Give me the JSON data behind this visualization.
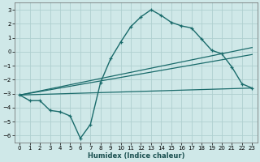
{
  "xlabel": "Humidex (Indice chaleur)",
  "ylabel": "",
  "background_color": "#cfe8e8",
  "grid_color": "#afd0d0",
  "line_color": "#1a6b6b",
  "xlim": [
    -0.5,
    23.5
  ],
  "ylim": [
    -6.5,
    3.5
  ],
  "yticks": [
    -6,
    -5,
    -4,
    -3,
    -2,
    -1,
    0,
    1,
    2,
    3
  ],
  "xticks": [
    0,
    1,
    2,
    3,
    4,
    5,
    6,
    7,
    8,
    9,
    10,
    11,
    12,
    13,
    14,
    15,
    16,
    17,
    18,
    19,
    20,
    21,
    22,
    23
  ],
  "line1_x": [
    0,
    1,
    2,
    3,
    4,
    5,
    6,
    7,
    8,
    9,
    10,
    11,
    12,
    13,
    14,
    15,
    16,
    17,
    18,
    19,
    20,
    21,
    22,
    23
  ],
  "line1_y": [
    -3.1,
    -3.5,
    -3.5,
    -4.2,
    -4.3,
    -4.6,
    -6.2,
    -5.2,
    -2.2,
    -0.5,
    0.7,
    1.8,
    2.5,
    3.0,
    2.6,
    2.1,
    1.85,
    1.7,
    0.9,
    0.1,
    -0.15,
    -1.1,
    -2.3,
    -2.6
  ],
  "line2_x": [
    0,
    23
  ],
  "line2_y": [
    -3.1,
    -2.6
  ],
  "line3_x": [
    0,
    23
  ],
  "line3_y": [
    -3.1,
    0.3
  ],
  "line4_x": [
    0,
    23
  ],
  "line4_y": [
    -3.1,
    -0.2
  ]
}
